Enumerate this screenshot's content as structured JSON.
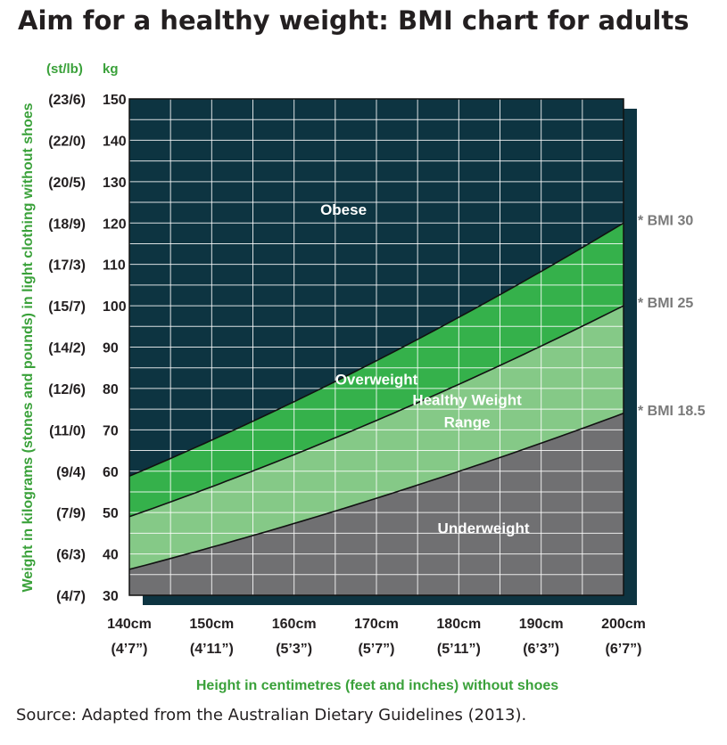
{
  "title": "Aim for a healthy weight: BMI chart for adults",
  "source": "Source: Adapted from the Australian Dietary Guidelines (2013).",
  "colors": {
    "obese": "#0d3441",
    "overweight": "#35b14b",
    "healthy": "#85c987",
    "underweight": "#707072",
    "grid": "#ffffff",
    "axis_title": "#3aa13a",
    "bmi_label": "#7a7a7a",
    "shadow": "#0d3441"
  },
  "chart_data": {
    "type": "area",
    "xlabel": "Height in centimetres (feet and inches) without shoes",
    "ylabel": "Weight in kilograms (stones and pounds) in light clothing without shoes",
    "unit_labels": {
      "stlb": "(st/lb)",
      "kg": "kg"
    },
    "xlim": [
      140,
      200
    ],
    "ylim": [
      30,
      150
    ],
    "x_ticks": [
      {
        "value": 140,
        "cm": "140cm",
        "ftin": "(4’7”)"
      },
      {
        "value": 150,
        "cm": "150cm",
        "ftin": "(4’11”)"
      },
      {
        "value": 160,
        "cm": "160cm",
        "ftin": "(5’3”)"
      },
      {
        "value": 170,
        "cm": "170cm",
        "ftin": "(5’7”)"
      },
      {
        "value": 180,
        "cm": "180cm",
        "ftin": "(5’11”)"
      },
      {
        "value": 190,
        "cm": "190cm",
        "ftin": "(6’3”)"
      },
      {
        "value": 200,
        "cm": "200cm",
        "ftin": "(6’7”)"
      }
    ],
    "y_ticks": [
      {
        "value": 150,
        "kg": "150",
        "stlb": "(23/6)"
      },
      {
        "value": 140,
        "kg": "140",
        "stlb": "(22/0)"
      },
      {
        "value": 130,
        "kg": "130",
        "stlb": "(20/5)"
      },
      {
        "value": 120,
        "kg": "120",
        "stlb": "(18/9)"
      },
      {
        "value": 110,
        "kg": "110",
        "stlb": "(17/3)"
      },
      {
        "value": 100,
        "kg": "100",
        "stlb": "(15/7)"
      },
      {
        "value": 90,
        "kg": "90",
        "stlb": "(14/2)"
      },
      {
        "value": 80,
        "kg": "80",
        "stlb": "(12/6)"
      },
      {
        "value": 70,
        "kg": "70",
        "stlb": "(11/0)"
      },
      {
        "value": 60,
        "kg": "60",
        "stlb": "(9/4)"
      },
      {
        "value": 50,
        "kg": "50",
        "stlb": "(7/9)"
      },
      {
        "value": 40,
        "kg": "40",
        "stlb": "(6/3)"
      },
      {
        "value": 30,
        "kg": "30",
        "stlb": "(4/7)"
      }
    ],
    "x_grid_step": 5,
    "y_grid_step": 5,
    "bmi_lines": [
      {
        "name": "* BMI 18.5",
        "bmi": 18.5
      },
      {
        "name": "* BMI 25",
        "bmi": 25
      },
      {
        "name": "* BMI 30",
        "bmi": 30
      }
    ],
    "regions": [
      {
        "name": "Obese",
        "label": [
          "Obese"
        ],
        "x": 166,
        "y": 122
      },
      {
        "name": "Overweight",
        "label": [
          "Overweight"
        ],
        "x": 170,
        "y": 81
      },
      {
        "name": "Healthy Weight Range",
        "label": [
          "Healthy Weight",
          "Range"
        ],
        "x": 181,
        "y": 76
      },
      {
        "name": "Underweight",
        "label": [
          "Underweight"
        ],
        "x": 183,
        "y": 45
      }
    ]
  }
}
